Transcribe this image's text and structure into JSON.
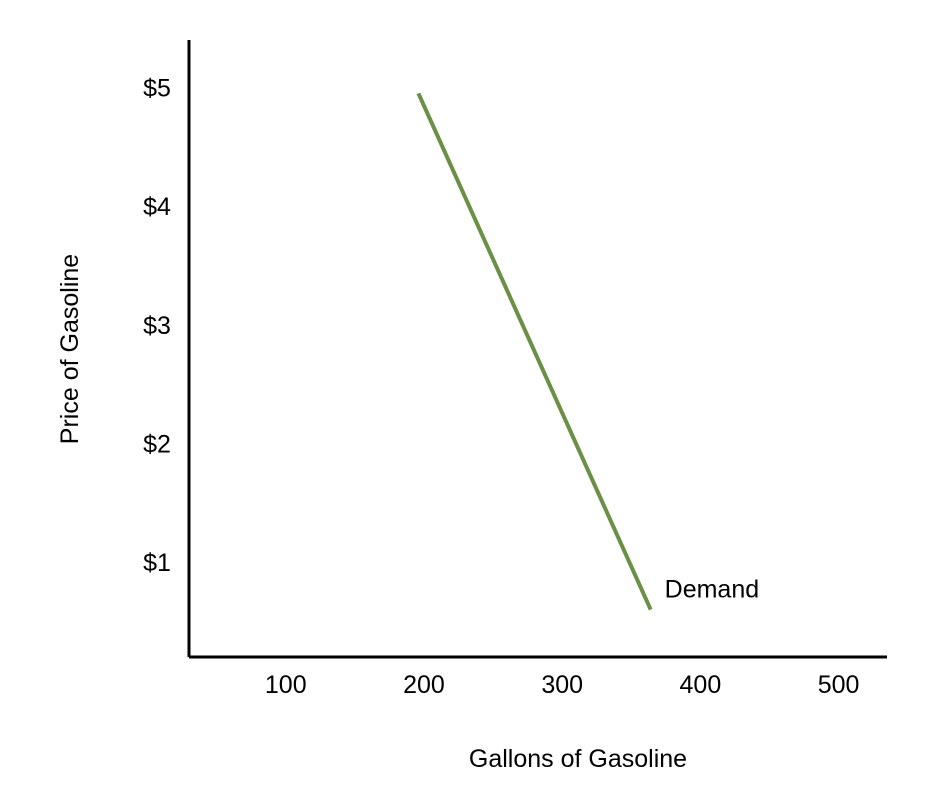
{
  "chart_data": {
    "type": "line",
    "title": "",
    "xlabel": "Gallons of Gasoline",
    "ylabel": "Price of Gasoline",
    "xticks": [
      {
        "value": 100,
        "label": "100"
      },
      {
        "value": 200,
        "label": "200"
      },
      {
        "value": 300,
        "label": "300"
      },
      {
        "value": 400,
        "label": "400"
      },
      {
        "value": 500,
        "label": "500"
      }
    ],
    "yticks": [
      {
        "value": 1,
        "label": "$1"
      },
      {
        "value": 2,
        "label": "$2"
      },
      {
        "value": 3,
        "label": "$3"
      },
      {
        "value": 4,
        "label": "$4"
      },
      {
        "value": 5,
        "label": "$5"
      }
    ],
    "xlim": [
      30,
      535
    ],
    "ylim": [
      0.2,
      5.4
    ],
    "grid": false,
    "series": [
      {
        "name": "Demand",
        "color": "#6a8f45",
        "points": [
          {
            "x": 196,
            "y": 4.95
          },
          {
            "x": 364,
            "y": 0.6
          }
        ]
      }
    ]
  }
}
